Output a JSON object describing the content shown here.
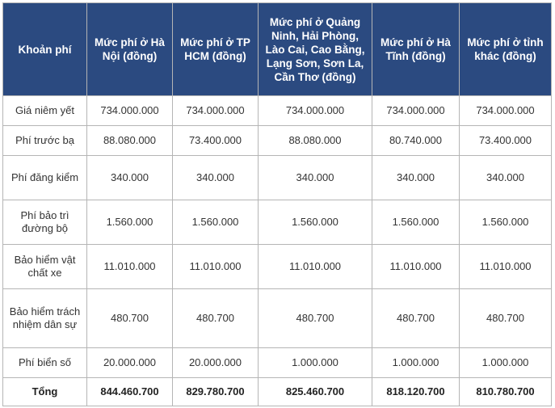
{
  "header": {
    "col0": "Khoản phí",
    "col1": "Mức phí ở Hà Nội (đồng)",
    "col2": "Mức phí ở TP HCM (đồng)",
    "col3": "Mức phí ở Quảng Ninh, Hải Phòng, Lào Cai, Cao Bằng, Lạng Sơn, Sơn La, Cần Thơ (đồng)",
    "col4": "Mức phí ở Hà Tĩnh (đồng)",
    "col5": "Mức phí ở tỉnh khác (đồng)"
  },
  "rows": [
    {
      "label": "Giá niêm yết",
      "values": [
        "734.000.000",
        "734.000.000",
        "734.000.000",
        "734.000.000",
        "734.000.000"
      ]
    },
    {
      "label": "Phí trước bạ",
      "values": [
        "88.080.000",
        "73.400.000",
        "88.080.000",
        "80.740.000",
        "73.400.000"
      ]
    },
    {
      "label": "Phí đăng kiểm",
      "values": [
        "340.000",
        "340.000",
        "340.000",
        "340.000",
        "340.000"
      ]
    },
    {
      "label": "Phí bảo trì đường bộ",
      "values": [
        "1.560.000",
        "1.560.000",
        "1.560.000",
        "1.560.000",
        "1.560.000"
      ]
    },
    {
      "label": "Bảo hiểm vật chất xe",
      "values": [
        "11.010.000",
        "11.010.000",
        "11.010.000",
        "11.010.000",
        "11.010.000"
      ]
    },
    {
      "label": "Bảo hiểm trách nhiệm dân sự",
      "values": [
        "480.700",
        "480.700",
        "480.700",
        "480.700",
        "480.700"
      ]
    },
    {
      "label": "Phí biển số",
      "values": [
        "20.000.000",
        "20.000.000",
        "1.000.000",
        "1.000.000",
        "1.000.000"
      ]
    },
    {
      "label": "Tổng",
      "values": [
        "844.460.700",
        "829.780.700",
        "825.460.700",
        "818.120.700",
        "810.780.700"
      ]
    }
  ]
}
